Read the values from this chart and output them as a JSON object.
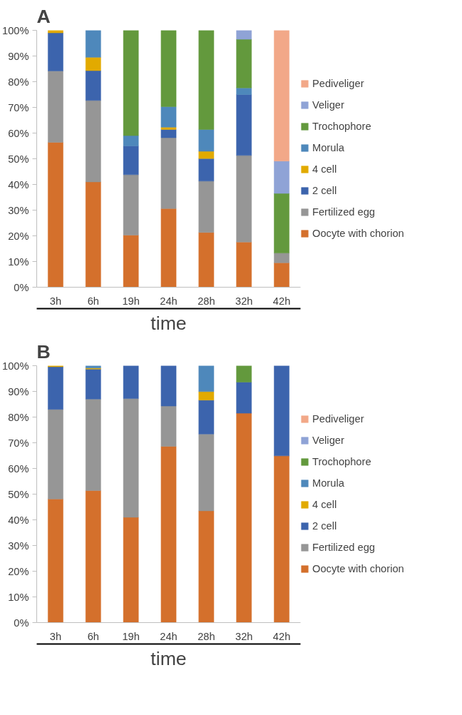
{
  "chart_data": [
    {
      "type": "bar",
      "title": "A",
      "xlabel": "time",
      "stacked": true,
      "legend": "right",
      "grid": false,
      "categories": [
        "3h",
        "6h",
        "19h",
        "24h",
        "28h",
        "32h",
        "42h"
      ],
      "ylim": [
        0,
        100
      ],
      "yticks": [
        {
          "value": 0,
          "label": "0%"
        },
        {
          "value": 10,
          "label": "10%"
        },
        {
          "value": 20,
          "label": "20%"
        },
        {
          "value": 30,
          "label": "30%"
        },
        {
          "value": 40,
          "label": "40%"
        },
        {
          "value": 50,
          "label": "50%"
        },
        {
          "value": 60,
          "label": "60%"
        },
        {
          "value": 70,
          "label": "70%"
        },
        {
          "value": 80,
          "label": "80%"
        },
        {
          "value": 90,
          "label": "90%"
        },
        {
          "value": 100,
          "label": "100%"
        }
      ],
      "series": [
        {
          "name": "Oocyte with chorion",
          "color": "#d4702c",
          "values": [
            56.4,
            41.0,
            20.3,
            30.6,
            21.3,
            17.6,
            9.5
          ]
        },
        {
          "name": "Fertilized egg",
          "color": "#969696",
          "values": [
            27.8,
            31.7,
            23.5,
            27.6,
            20.0,
            33.7,
            3.8
          ]
        },
        {
          "name": "2 cell",
          "color": "#3c64ad",
          "values": [
            14.8,
            11.6,
            11.2,
            3.2,
            8.8,
            23.7,
            null
          ]
        },
        {
          "name": "4 cell",
          "color": "#e2aa00",
          "values": [
            1.0,
            5.2,
            null,
            0.9,
            2.8,
            null,
            null
          ]
        },
        {
          "name": "Morula",
          "color": "#4e88bb",
          "values": [
            null,
            10.5,
            4.0,
            8.0,
            8.5,
            2.6,
            null
          ]
        },
        {
          "name": "Trochophore",
          "color": "#63993d",
          "values": [
            null,
            null,
            41.0,
            29.7,
            38.6,
            18.9,
            23.2
          ]
        },
        {
          "name": "Veliger",
          "color": "#8fa3d6",
          "values": [
            null,
            null,
            null,
            null,
            null,
            3.5,
            12.6
          ]
        },
        {
          "name": "Pediveliger",
          "color": "#f2a888",
          "values": [
            null,
            null,
            null,
            null,
            null,
            null,
            50.9
          ]
        }
      ]
    },
    {
      "type": "bar",
      "title": "B",
      "xlabel": "time",
      "stacked": true,
      "legend": "right",
      "grid": false,
      "categories": [
        "3h",
        "6h",
        "19h",
        "24h",
        "28h",
        "32h",
        "42h"
      ],
      "ylim": [
        0,
        100
      ],
      "yticks": [
        {
          "value": 0,
          "label": "0%"
        },
        {
          "value": 10,
          "label": "10%"
        },
        {
          "value": 20,
          "label": "20%"
        },
        {
          "value": 30,
          "label": "30%"
        },
        {
          "value": 40,
          "label": "40%"
        },
        {
          "value": 50,
          "label": "50%"
        },
        {
          "value": 60,
          "label": "60%"
        },
        {
          "value": 70,
          "label": "70%"
        },
        {
          "value": 80,
          "label": "80%"
        },
        {
          "value": 90,
          "label": "90%"
        },
        {
          "value": 100,
          "label": "100%"
        }
      ],
      "series": [
        {
          "name": "Oocyte with chorion",
          "color": "#d4702c",
          "values": [
            48.1,
            51.4,
            41.0,
            68.6,
            43.5,
            81.5,
            64.9
          ]
        },
        {
          "name": "Fertilized egg",
          "color": "#969696",
          "values": [
            34.9,
            35.6,
            46.2,
            15.7,
            29.9,
            null,
            null
          ]
        },
        {
          "name": "2 cell",
          "color": "#3c64ad",
          "values": [
            16.6,
            11.7,
            12.8,
            15.7,
            13.2,
            12.1,
            35.1
          ]
        },
        {
          "name": "4 cell",
          "color": "#e2aa00",
          "values": [
            0.4,
            0.4,
            null,
            null,
            3.3,
            null,
            null
          ]
        },
        {
          "name": "Morula",
          "color": "#4e88bb",
          "values": [
            null,
            0.9,
            null,
            null,
            10.1,
            null,
            null
          ]
        },
        {
          "name": "Trochophore",
          "color": "#63993d",
          "values": [
            null,
            null,
            null,
            null,
            null,
            6.4,
            null
          ]
        },
        {
          "name": "Veliger",
          "color": "#8fa3d6",
          "values": [
            null,
            null,
            null,
            null,
            null,
            null,
            null
          ]
        },
        {
          "name": "Pediveliger",
          "color": "#f2a888",
          "values": [
            null,
            null,
            null,
            null,
            null,
            null,
            null
          ]
        }
      ]
    }
  ]
}
